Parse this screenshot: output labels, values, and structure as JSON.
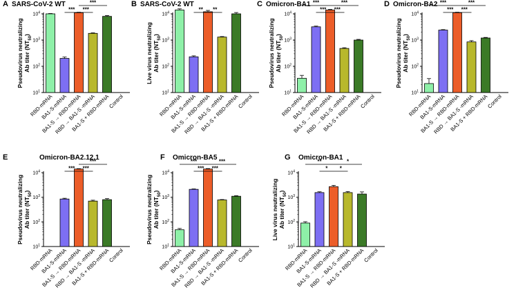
{
  "colors": {
    "RBD-mRNA": "#8ef0a8",
    "BA1-S-mRNA": "#7d6ff3",
    "BA1-S → RBD-mRNA": "#ec5d29",
    "RBD → BA1-S -mRNA": "#b8b82c",
    "BA1-S + RBD-mRNA": "#3b7a27",
    "Control": "#ffffff"
  },
  "chart_data": [
    {
      "panel": "A",
      "title": "SARS-CoV-2 WT",
      "type": "bar",
      "yscale": "log",
      "ylabel_line1": "Pseudovirus neutralizing",
      "ylabel_line2": "Ab titer (NT",
      "ylabel_sub": "50",
      "ylabel_end": ")",
      "ylim": [
        10,
        10000
      ],
      "yticks": [
        {
          "label": "10",
          "sup": "1"
        },
        {
          "label": "10",
          "sup": "2"
        },
        {
          "label": "10",
          "sup": "3"
        },
        {
          "label": "10",
          "sup": "4"
        }
      ],
      "categories": [
        "RBD-mRNA",
        "BA1-S-mRNA",
        "BA1-S → RBD-mRNA",
        "RBD → BA1-S -mRNA",
        "BA1-S + RBD-mRNA",
        "Control"
      ],
      "values": [
        10000,
        200,
        11000,
        1800,
        8000,
        null
      ],
      "errors": [
        300,
        25,
        500,
        80,
        600,
        null
      ],
      "sig": [
        {
          "from": 1,
          "to": 2,
          "label": "***",
          "level": 1
        },
        {
          "from": 2,
          "to": 3,
          "label": "***",
          "level": 1
        },
        {
          "from": 2,
          "to": 4,
          "label": "***",
          "level": 2
        }
      ]
    },
    {
      "panel": "B",
      "title": "SARS-CoV-2 WT",
      "type": "bar",
      "yscale": "log",
      "ylabel_line1": "Live virus neutralizing",
      "ylabel_line2": "Ab titer (NT",
      "ylabel_sub": "50",
      "ylabel_end": ")",
      "ylim": [
        10,
        10000
      ],
      "yticks": [
        {
          "label": "10",
          "sup": "1"
        },
        {
          "label": "10",
          "sup": "2"
        },
        {
          "label": "10",
          "sup": "3"
        },
        {
          "label": "10",
          "sup": "4"
        }
      ],
      "categories": [
        "RBD-mRNA",
        "BA1-S-mRNA",
        "BA1-S → RBD-mRNA",
        "RBD → BA1-S -mRNA",
        "BA1-S + RBD-mRNA",
        "Control"
      ],
      "values": [
        14000,
        230,
        12000,
        1300,
        10000,
        null
      ],
      "errors": [
        1500,
        20,
        1500,
        60,
        1200,
        null
      ],
      "sig": [
        {
          "from": 1,
          "to": 2,
          "label": "**",
          "level": 1
        },
        {
          "from": 2,
          "to": 3,
          "label": "**",
          "level": 1
        }
      ]
    },
    {
      "panel": "C",
      "title": "Omicron-BA1",
      "type": "bar",
      "yscale": "log",
      "ylabel_line1": "Pseudovirus neutralizing",
      "ylabel_line2": "Ab titer (NT",
      "ylabel_sub": "50",
      "ylabel_end": ")",
      "ylim": [
        10,
        10000
      ],
      "yticks": [
        {
          "label": "10",
          "sup": "1"
        },
        {
          "label": "10",
          "sup": "2"
        },
        {
          "label": "10",
          "sup": "3"
        },
        {
          "label": "10",
          "sup": "4"
        }
      ],
      "categories": [
        "RBD-mRNA",
        "BA1-S-mRNA",
        "BA1-S → RBD-mRNA",
        "RBD → BA1-S -mRNA",
        "BA1-S + RBD-mRNA",
        "Control"
      ],
      "values": [
        35,
        3200,
        14000,
        480,
        1000,
        null
      ],
      "errors": [
        10,
        200,
        700,
        30,
        60,
        null
      ],
      "sig": [
        {
          "from": 1,
          "to": 2,
          "label": "***",
          "level": 1
        },
        {
          "from": 2,
          "to": 3,
          "label": "***",
          "level": 1
        },
        {
          "from": 0,
          "to": 2,
          "label": "***",
          "level": 2
        },
        {
          "from": 2,
          "to": 4,
          "label": "***",
          "level": 2
        }
      ]
    },
    {
      "panel": "D",
      "title": "Omicron-BA2",
      "type": "bar",
      "yscale": "log",
      "ylabel_line1": "Pseudovirus neutralizing",
      "ylabel_line2": "Ab titer (NT",
      "ylabel_sub": "50",
      "ylabel_end": ")",
      "ylim": [
        10,
        10000
      ],
      "yticks": [
        {
          "label": "10",
          "sup": "1"
        },
        {
          "label": "10",
          "sup": "2"
        },
        {
          "label": "10",
          "sup": "3"
        },
        {
          "label": "10",
          "sup": "4"
        }
      ],
      "categories": [
        "RBD-mRNA",
        "BA1-S-mRNA",
        "BA1-S → RBD-mRNA",
        "RBD → BA1-S -mRNA",
        "BA1-S + RBD-mRNA",
        "Control"
      ],
      "values": [
        22,
        2400,
        11000,
        850,
        1200,
        null
      ],
      "errors": [
        12,
        100,
        500,
        100,
        60,
        null
      ],
      "sig": [
        {
          "from": 1,
          "to": 2,
          "label": "***",
          "level": 1
        },
        {
          "from": 2,
          "to": 3,
          "label": "***",
          "level": 1
        },
        {
          "from": 0,
          "to": 2,
          "label": "***",
          "level": 2
        },
        {
          "from": 2,
          "to": 4,
          "label": "***",
          "level": 2
        }
      ]
    },
    {
      "panel": "E",
      "title": "Omicron-BA2.12.1",
      "type": "bar",
      "yscale": "log",
      "ylabel_line1": "Pseudovirus neutralizing",
      "ylabel_line2": "Ab titer (NT",
      "ylabel_sub": "50",
      "ylabel_end": ")",
      "ylim": [
        10,
        10000
      ],
      "yticks": [
        {
          "label": "10",
          "sup": "1"
        },
        {
          "label": "10",
          "sup": "2"
        },
        {
          "label": "10",
          "sup": "3"
        },
        {
          "label": "10",
          "sup": "4"
        }
      ],
      "categories": [
        "RBD-mRNA",
        "BA1-S-mRNA",
        "BA1-S → RBD-mRNA",
        "RBD → BA1-S -mRNA",
        "BA1-S + RBD-mRNA",
        "Control"
      ],
      "values": [
        null,
        850,
        14000,
        700,
        800,
        null
      ],
      "errors": [
        null,
        60,
        500,
        60,
        80,
        null
      ],
      "sig": [
        {
          "from": 1,
          "to": 2,
          "label": "***",
          "level": 1
        },
        {
          "from": 2,
          "to": 3,
          "label": "***",
          "level": 1
        },
        {
          "from": 2,
          "to": 4,
          "label": "***",
          "level": 2
        }
      ]
    },
    {
      "panel": "F",
      "title": "Omicron-BA5",
      "type": "bar",
      "yscale": "log",
      "ylabel_line1": "Pseudovirus neutralizing",
      "ylabel_line2": "Ab titer (NT",
      "ylabel_sub": "50",
      "ylabel_end": ")",
      "ylim": [
        10,
        10000
      ],
      "yticks": [
        {
          "label": "10",
          "sup": "1"
        },
        {
          "label": "10",
          "sup": "2"
        },
        {
          "label": "10",
          "sup": "3"
        },
        {
          "label": "10",
          "sup": "4"
        }
      ],
      "categories": [
        "RBD-mRNA",
        "BA1-S-mRNA",
        "BA1-S → RBD-mRNA",
        "RBD → BA1-S -mRNA",
        "BA1-S + RBD-mRNA",
        "Control"
      ],
      "values": [
        48,
        2100,
        14000,
        780,
        1100,
        null
      ],
      "errors": [
        6,
        80,
        600,
        30,
        60,
        null
      ],
      "sig": [
        {
          "from": 1,
          "to": 2,
          "label": "***",
          "level": 1
        },
        {
          "from": 2,
          "to": 3,
          "label": "***",
          "level": 1
        },
        {
          "from": 0,
          "to": 2,
          "label": "***",
          "level": 2
        },
        {
          "from": 2,
          "to": 4,
          "label": "***",
          "level": 2
        }
      ]
    },
    {
      "panel": "G",
      "title": "Omicron-BA1",
      "type": "bar",
      "yscale": "log",
      "ylabel_line1": "Live virus neutralizing",
      "ylabel_line2": "Ab titer (NT",
      "ylabel_sub": "50",
      "ylabel_end": ")",
      "ylim": [
        10,
        10000
      ],
      "yticks": [
        {
          "label": "10",
          "sup": "1"
        },
        {
          "label": "10",
          "sup": "2"
        },
        {
          "label": "10",
          "sup": "3"
        },
        {
          "label": "10",
          "sup": "4"
        }
      ],
      "categories": [
        "RBD-mRNA",
        "BA1-S-mRNA",
        "BA1-S → RBD-mRNA",
        "RBD → BA1-S -mRNA",
        "BA1-S + RBD-mRNA",
        "Control"
      ],
      "values": [
        90,
        1550,
        2700,
        1550,
        1350,
        null
      ],
      "errors": [
        12,
        120,
        350,
        150,
        300,
        null
      ],
      "sig": [
        {
          "from": 1,
          "to": 2,
          "label": "*",
          "level": 1
        },
        {
          "from": 2,
          "to": 3,
          "label": "*",
          "level": 1
        },
        {
          "from": 0,
          "to": 2,
          "label": "**",
          "level": 2
        },
        {
          "from": 2,
          "to": 4,
          "label": "*",
          "level": 2
        }
      ]
    }
  ]
}
